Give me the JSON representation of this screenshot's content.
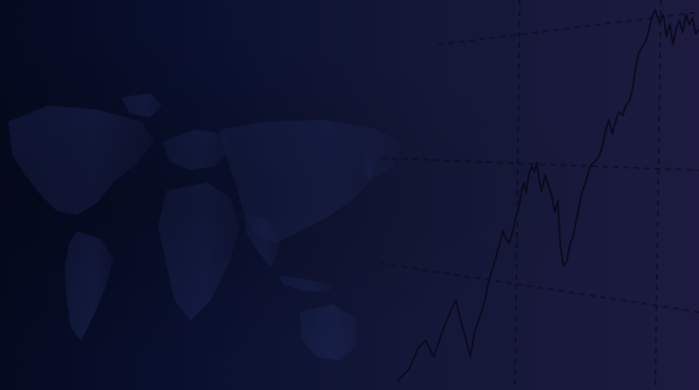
{
  "background": {
    "description_colors": {
      "left": "#050a20",
      "middle": "#0f1534",
      "right": "#1c1a40",
      "map_fill": "#1b2452",
      "chart_line": "#080a1a",
      "grid_dash": "#0d0f26"
    }
  }
}
